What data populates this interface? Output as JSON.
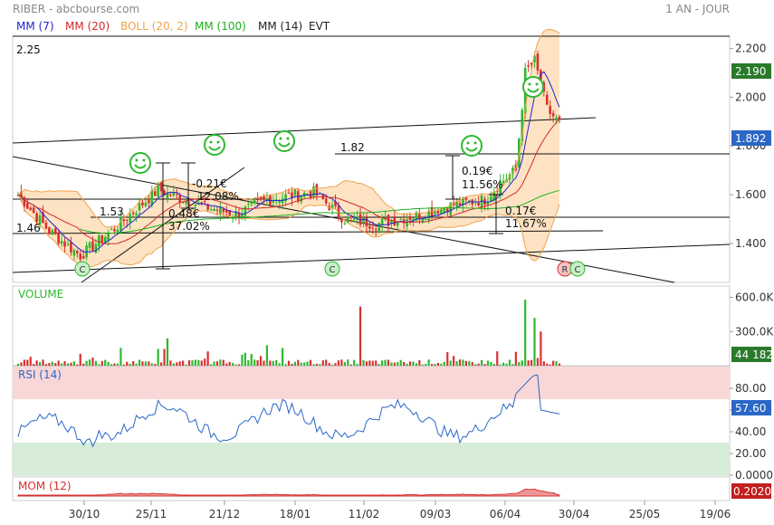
{
  "header": {
    "title": "RIBER - abcbourse.com",
    "period": "1 AN - JOUR"
  },
  "legend": [
    {
      "label": "MM (7)",
      "color": "#2323d6"
    },
    {
      "label": "MM (20)",
      "color": "#d62a2a"
    },
    {
      "label": "BOLL (20, 2)",
      "color": "#f0a24c"
    },
    {
      "label": "MM (100)",
      "color": "#1fae1f"
    },
    {
      "label": "MM (14)",
      "color": "#222222"
    },
    {
      "label": "EVT",
      "color": "#222222"
    }
  ],
  "colors": {
    "up": "#2eb82e",
    "down": "#d93030",
    "boll_fill": "#fde3c3",
    "boll_line": "#f0a24c",
    "rsi_over": "#f9d7d7",
    "rsi_under": "#d7ecd7",
    "mom_fill": "#d93030",
    "price_badge": "#2a7a2a",
    "last_badge": "#2a67c7"
  },
  "chart_data": [
    {
      "type": "candlestick",
      "name": "price",
      "ylim": [
        1.24,
        2.25
      ],
      "yticks": [
        "2.200",
        "2.000",
        "1.800",
        "1.600",
        "1.400"
      ],
      "ytick_values": [
        2.2,
        2.0,
        1.8,
        1.6,
        1.4
      ],
      "xticks": [
        "30/10",
        "25/11",
        "21/12",
        "18/01",
        "11/02",
        "09/03",
        "06/04",
        "30/04",
        "25/05",
        "19/06"
      ],
      "badges": {
        "high": "2.190",
        "last": "1.892"
      },
      "annotations": {
        "level_225": "2.25",
        "level_182": "1.82",
        "level_153": "1.53",
        "level_146": "1.46",
        "chg_1": "-0.21€",
        "chg_1_pct": "12.08%",
        "chg_2": "0.48€",
        "chg_2_pct": "37.02%",
        "chg_3": "0.19€",
        "chg_3_pct": "11.56%",
        "chg_4": "0.17€",
        "chg_4_pct": "11.67%"
      },
      "events": {
        "c": "C",
        "r": "R"
      }
    },
    {
      "type": "bar",
      "name": "volume",
      "label": "VOLUME",
      "ylim": [
        0,
        700000
      ],
      "yticks": [
        "600.0K",
        "300.0K"
      ],
      "ytick_values": [
        600000,
        300000
      ],
      "last": "44 182"
    },
    {
      "type": "line",
      "name": "rsi",
      "label": "RSI (14)",
      "ylim": [
        0,
        100
      ],
      "yticks": [
        "80.00",
        "60.00",
        "40.00",
        "20.00",
        "0.0000"
      ],
      "ytick_values": [
        80,
        60,
        40,
        20,
        0
      ],
      "last": "57.60"
    },
    {
      "type": "area",
      "name": "mom",
      "label": "MOM (12)",
      "last": "0.2020"
    }
  ]
}
